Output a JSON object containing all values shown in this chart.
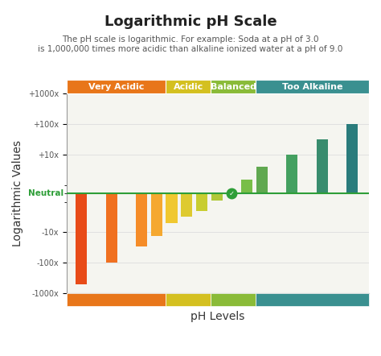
{
  "title": "Logarithmic pH Scale",
  "subtitle": "The pH scale is logarithmic. For example: Soda at a pH of 3.0\nis 1,000,000 times more acidic than alkaline ionized water at a pH of 9.0",
  "xlabel": "pH Levels",
  "ylabel": "Logarithmic Values",
  "ph_levels": [
    4.5,
    5.0,
    5.5,
    5.75,
    6.0,
    6.25,
    6.5,
    6.75,
    7.0,
    7.25,
    7.5,
    8.0,
    8.5,
    9.0
  ],
  "log_values": [
    -500,
    -100,
    -30,
    -13,
    -5,
    -3,
    -2,
    -0.8,
    0,
    1.5,
    4,
    10,
    32,
    100
  ],
  "bar_colors": [
    "#E84B18",
    "#F07020",
    "#F58C28",
    "#F5A830",
    "#F0C830",
    "#DECA30",
    "#C8CD30",
    "#B0C838",
    "#90C040",
    "#78BE48",
    "#60A850",
    "#44A060",
    "#388C6E",
    "#2A7C7C"
  ],
  "cat_header_colors": [
    "#E8761A",
    "#D4C020",
    "#8ABB38",
    "#3A9090"
  ],
  "cat_spans": [
    [
      4.25,
      5.9
    ],
    [
      5.9,
      6.65
    ],
    [
      6.65,
      7.4
    ],
    [
      7.4,
      9.28
    ]
  ],
  "cat_labels": [
    "Very Acidic",
    "Acidic",
    "Balanced",
    "Too Alkaline"
  ],
  "neutral_color": "#2E9E38",
  "neutral_label": "Neutral",
  "background_color": "#FFFFFF",
  "grid_color": "#DDDDDD",
  "title_fontsize": 13,
  "subtitle_fontsize": 7.5,
  "axis_label_fontsize": 10,
  "tick_fontsize": 7,
  "cat_fontsize": 8,
  "bar_width": 0.19,
  "xlim": [
    4.25,
    9.28
  ],
  "ylim_log": [
    -1000,
    1000
  ],
  "ytick_vals": [
    -1000,
    -100,
    -10,
    10,
    100,
    1000
  ],
  "ytick_labels": [
    "-1000x",
    "-100x",
    "-10x",
    "+10x",
    "+100x",
    "+1000x"
  ],
  "linthresh": 1,
  "linscale": 0.25
}
